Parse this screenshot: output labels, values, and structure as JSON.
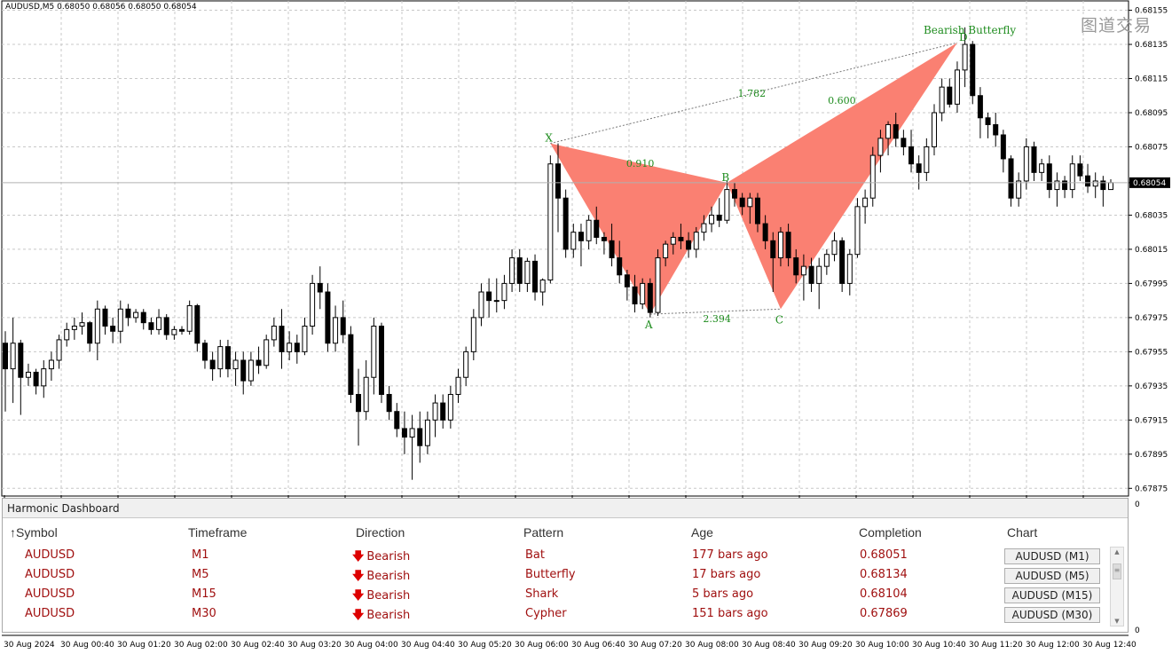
{
  "symbol_line": "AUDUSD,M5  0.68050 0.68056 0.68050 0.68054",
  "watermark": "图道交易",
  "price_axis": {
    "labels": [
      "0.68155",
      "0.68135",
      "0.68115",
      "0.68095",
      "0.68075",
      "0.68054",
      "0.68035",
      "0.68015",
      "0.67995",
      "0.67975",
      "0.67955",
      "0.67935",
      "0.67915",
      "0.67895",
      "0.67875"
    ],
    "current_price": "0.68054",
    "bottom_left_label": "0",
    "bottom_right_label": "0"
  },
  "time_axis": [
    "30 Aug 2024",
    "30 Aug 00:40",
    "30 Aug 01:20",
    "30 Aug 02:00",
    "30 Aug 02:40",
    "30 Aug 03:20",
    "30 Aug 04:00",
    "30 Aug 04:40",
    "30 Aug 05:20",
    "30 Aug 06:00",
    "30 Aug 06:40",
    "30 Aug 07:20",
    "30 Aug 08:00",
    "30 Aug 08:40",
    "30 Aug 09:20",
    "30 Aug 10:00",
    "30 Aug 10:40",
    "30 Aug 11:20",
    "30 Aug 12:00",
    "30 Aug 12:40"
  ],
  "pattern": {
    "name": "Bearish Butterfly",
    "points": [
      {
        "label": "X",
        "price": 0.68077
      },
      {
        "label": "A",
        "price": 0.67977
      },
      {
        "label": "B",
        "price": 0.68054
      },
      {
        "label": "C",
        "price": 0.6798
      },
      {
        "label": "D",
        "price": 0.68136
      }
    ],
    "ratios": {
      "xb": "0.910",
      "ac_label": "2.394",
      "xd": "1.782",
      "bd": "0.600"
    },
    "fill_color": "#fa8072",
    "label_color": "#1e8c1e"
  },
  "chart_data": {
    "type": "candlestick",
    "title": "AUDUSD,M5",
    "ylim": [
      0.67871,
      0.68161
    ],
    "current_price": 0.68054,
    "candles_ohlc": [
      [
        0.6796,
        0.67967,
        0.6792,
        0.67945
      ],
      [
        0.67945,
        0.67975,
        0.67925,
        0.6796
      ],
      [
        0.6796,
        0.67962,
        0.67918,
        0.6794
      ],
      [
        0.6794,
        0.67948,
        0.67935,
        0.67943
      ],
      [
        0.67943,
        0.67945,
        0.6793,
        0.67935
      ],
      [
        0.67935,
        0.6795,
        0.67928,
        0.67945
      ],
      [
        0.67945,
        0.67955,
        0.67938,
        0.6795
      ],
      [
        0.6795,
        0.67965,
        0.67945,
        0.67962
      ],
      [
        0.67962,
        0.67972,
        0.67958,
        0.67968
      ],
      [
        0.67968,
        0.67975,
        0.67962,
        0.6797
      ],
      [
        0.6797,
        0.67978,
        0.67965,
        0.67972
      ],
      [
        0.67972,
        0.67973,
        0.67955,
        0.6796
      ],
      [
        0.6796,
        0.67985,
        0.6795,
        0.6798
      ],
      [
        0.6798,
        0.67982,
        0.67965,
        0.6797
      ],
      [
        0.6797,
        0.67975,
        0.6796,
        0.67967
      ],
      [
        0.67967,
        0.67985,
        0.6796,
        0.6798
      ],
      [
        0.6798,
        0.67983,
        0.6797,
        0.67975
      ],
      [
        0.67975,
        0.6798,
        0.67972,
        0.67978
      ],
      [
        0.67978,
        0.6798,
        0.67968,
        0.67972
      ],
      [
        0.67972,
        0.67975,
        0.67965,
        0.67968
      ],
      [
        0.67968,
        0.6798,
        0.67965,
        0.67975
      ],
      [
        0.67975,
        0.67977,
        0.67962,
        0.67965
      ],
      [
        0.67965,
        0.6797,
        0.67962,
        0.67968
      ],
      [
        0.67968,
        0.6797,
        0.67965,
        0.67967
      ],
      [
        0.67967,
        0.67985,
        0.67965,
        0.67982
      ],
      [
        0.67982,
        0.67983,
        0.67955,
        0.6796
      ],
      [
        0.6796,
        0.67962,
        0.67945,
        0.6795
      ],
      [
        0.6795,
        0.67955,
        0.67938,
        0.67945
      ],
      [
        0.67945,
        0.67962,
        0.6794,
        0.67958
      ],
      [
        0.67958,
        0.67962,
        0.6794,
        0.67945
      ],
      [
        0.67945,
        0.67955,
        0.67935,
        0.6795
      ],
      [
        0.6795,
        0.67955,
        0.6793,
        0.67938
      ],
      [
        0.67938,
        0.67955,
        0.67935,
        0.6795
      ],
      [
        0.6795,
        0.67958,
        0.67942,
        0.67947
      ],
      [
        0.67947,
        0.67965,
        0.67945,
        0.67962
      ],
      [
        0.67962,
        0.67975,
        0.67958,
        0.6797
      ],
      [
        0.6797,
        0.6798,
        0.67945,
        0.67955
      ],
      [
        0.67955,
        0.67967,
        0.6795,
        0.6796
      ],
      [
        0.6796,
        0.67965,
        0.67948,
        0.67955
      ],
      [
        0.67955,
        0.67975,
        0.67953,
        0.6797
      ],
      [
        0.6797,
        0.68,
        0.67965,
        0.67995
      ],
      [
        0.67995,
        0.68005,
        0.6798,
        0.6799
      ],
      [
        0.6799,
        0.67995,
        0.67955,
        0.6796
      ],
      [
        0.6796,
        0.67982,
        0.67955,
        0.67975
      ],
      [
        0.67975,
        0.67985,
        0.6796,
        0.67965
      ],
      [
        0.67965,
        0.6797,
        0.67925,
        0.6793
      ],
      [
        0.6793,
        0.67945,
        0.679,
        0.6792
      ],
      [
        0.6792,
        0.6795,
        0.67915,
        0.6794
      ],
      [
        0.6794,
        0.67975,
        0.6793,
        0.6797
      ],
      [
        0.6797,
        0.67972,
        0.67925,
        0.6793
      ],
      [
        0.6793,
        0.67935,
        0.67915,
        0.6792
      ],
      [
        0.6792,
        0.67925,
        0.67905,
        0.6791
      ],
      [
        0.6791,
        0.6792,
        0.67895,
        0.67905
      ],
      [
        0.67905,
        0.67918,
        0.6788,
        0.6791
      ],
      [
        0.6791,
        0.6792,
        0.6789,
        0.679
      ],
      [
        0.679,
        0.6792,
        0.67895,
        0.67915
      ],
      [
        0.67915,
        0.6793,
        0.67905,
        0.67925
      ],
      [
        0.67925,
        0.6793,
        0.6791,
        0.67915
      ],
      [
        0.67915,
        0.67935,
        0.6791,
        0.6793
      ],
      [
        0.6793,
        0.67945,
        0.67925,
        0.6794
      ],
      [
        0.6794,
        0.67958,
        0.67935,
        0.67955
      ],
      [
        0.67955,
        0.6798,
        0.6795,
        0.67975
      ],
      [
        0.67975,
        0.67995,
        0.6797,
        0.6799
      ],
      [
        0.6799,
        0.67998,
        0.67975,
        0.67985
      ],
      [
        0.67985,
        0.67998,
        0.67978,
        0.67985
      ],
      [
        0.67985,
        0.68,
        0.6798,
        0.67995
      ],
      [
        0.67995,
        0.68015,
        0.6799,
        0.6801
      ],
      [
        0.6801,
        0.68015,
        0.6799,
        0.67995
      ],
      [
        0.67995,
        0.6801,
        0.6799,
        0.68008
      ],
      [
        0.68008,
        0.68012,
        0.67985,
        0.6799
      ],
      [
        0.6799,
        0.67998,
        0.67982,
        0.67997
      ],
      [
        0.67997,
        0.6807,
        0.67995,
        0.68065
      ],
      [
        0.68065,
        0.68077,
        0.68025,
        0.68045
      ],
      [
        0.68045,
        0.6805,
        0.6801,
        0.68015
      ],
      [
        0.68015,
        0.6803,
        0.6801,
        0.68025
      ],
      [
        0.68025,
        0.6803,
        0.68005,
        0.6802
      ],
      [
        0.6802,
        0.68035,
        0.68015,
        0.68032
      ],
      [
        0.68032,
        0.6804,
        0.68018,
        0.68022
      ],
      [
        0.68022,
        0.68025,
        0.68012,
        0.6802
      ],
      [
        0.6802,
        0.6803,
        0.68005,
        0.6801
      ],
      [
        0.6801,
        0.6802,
        0.67995,
        0.68
      ],
      [
        0.68,
        0.68003,
        0.67985,
        0.67993
      ],
      [
        0.67993,
        0.68,
        0.67978,
        0.67983
      ],
      [
        0.67983,
        0.67998,
        0.6798,
        0.67995
      ],
      [
        0.67995,
        0.67998,
        0.67975,
        0.67978
      ],
      [
        0.67978,
        0.68015,
        0.67976,
        0.6801
      ],
      [
        0.6801,
        0.6802,
        0.68005,
        0.68018
      ],
      [
        0.68018,
        0.68025,
        0.68012,
        0.68022
      ],
      [
        0.68022,
        0.6803,
        0.68015,
        0.6802
      ],
      [
        0.6802,
        0.68025,
        0.6801,
        0.68015
      ],
      [
        0.68015,
        0.68028,
        0.6801,
        0.68025
      ],
      [
        0.68025,
        0.68035,
        0.6802,
        0.6803
      ],
      [
        0.6803,
        0.6804,
        0.68025,
        0.68035
      ],
      [
        0.68035,
        0.68045,
        0.68028,
        0.68032
      ],
      [
        0.68032,
        0.68055,
        0.6803,
        0.6805
      ],
      [
        0.6805,
        0.68054,
        0.6804,
        0.68045
      ],
      [
        0.68045,
        0.68048,
        0.68035,
        0.6804
      ],
      [
        0.6804,
        0.68048,
        0.6803,
        0.68045
      ],
      [
        0.68045,
        0.68048,
        0.68025,
        0.6803
      ],
      [
        0.6803,
        0.68035,
        0.68015,
        0.6802
      ],
      [
        0.6802,
        0.68025,
        0.6799,
        0.6801
      ],
      [
        0.6801,
        0.68028,
        0.68005,
        0.68025
      ],
      [
        0.68025,
        0.6803,
        0.68005,
        0.6801
      ],
      [
        0.6801,
        0.68015,
        0.67995,
        0.68
      ],
      [
        0.68,
        0.68012,
        0.67985,
        0.68005
      ],
      [
        0.68005,
        0.6801,
        0.6799,
        0.67995
      ],
      [
        0.67995,
        0.6801,
        0.6798,
        0.68005
      ],
      [
        0.68005,
        0.68015,
        0.68,
        0.68012
      ],
      [
        0.68012,
        0.68025,
        0.68008,
        0.6802
      ],
      [
        0.6802,
        0.68022,
        0.6799,
        0.67995
      ],
      [
        0.67995,
        0.68015,
        0.67988,
        0.68012
      ],
      [
        0.68012,
        0.68045,
        0.6801,
        0.6804
      ],
      [
        0.6804,
        0.6805,
        0.6803,
        0.68045
      ],
      [
        0.68045,
        0.68075,
        0.6804,
        0.6807
      ],
      [
        0.6807,
        0.68085,
        0.6806,
        0.6808
      ],
      [
        0.6808,
        0.6809,
        0.6807,
        0.68088
      ],
      [
        0.68088,
        0.68095,
        0.68075,
        0.6808
      ],
      [
        0.6808,
        0.68085,
        0.6807,
        0.68075
      ],
      [
        0.68075,
        0.68085,
        0.6806,
        0.68065
      ],
      [
        0.68065,
        0.6807,
        0.6805,
        0.6806
      ],
      [
        0.6806,
        0.6808,
        0.68055,
        0.68075
      ],
      [
        0.68075,
        0.681,
        0.6807,
        0.68095
      ],
      [
        0.68095,
        0.68115,
        0.6809,
        0.6811
      ],
      [
        0.6811,
        0.68115,
        0.68098,
        0.681
      ],
      [
        0.681,
        0.68125,
        0.68095,
        0.6812
      ],
      [
        0.6812,
        0.68145,
        0.6811,
        0.68135
      ],
      [
        0.68135,
        0.68137,
        0.681,
        0.68105
      ],
      [
        0.68105,
        0.6811,
        0.6808,
        0.68092
      ],
      [
        0.68092,
        0.68095,
        0.6808,
        0.68088
      ],
      [
        0.68088,
        0.68095,
        0.68075,
        0.68082
      ],
      [
        0.68082,
        0.68085,
        0.6806,
        0.68068
      ],
      [
        0.68068,
        0.6807,
        0.6804,
        0.68045
      ],
      [
        0.68045,
        0.6806,
        0.6804,
        0.68055
      ],
      [
        0.68055,
        0.6808,
        0.6805,
        0.68075
      ],
      [
        0.68075,
        0.68078,
        0.68055,
        0.6806
      ],
      [
        0.6806,
        0.68068,
        0.68055,
        0.68065
      ],
      [
        0.68065,
        0.6807,
        0.68045,
        0.6805
      ],
      [
        0.6805,
        0.6806,
        0.6804,
        0.68055
      ],
      [
        0.68055,
        0.68058,
        0.68045,
        0.6805
      ],
      [
        0.6805,
        0.6807,
        0.68045,
        0.68065
      ],
      [
        0.68065,
        0.6807,
        0.68055,
        0.68058
      ],
      [
        0.68058,
        0.68065,
        0.68048,
        0.68052
      ],
      [
        0.68052,
        0.6806,
        0.68045,
        0.68055
      ],
      [
        0.68055,
        0.68058,
        0.6804,
        0.6805
      ],
      [
        0.6805,
        0.68056,
        0.6805,
        0.68054
      ]
    ]
  },
  "dashboard": {
    "title": "Harmonic Dashboard",
    "headers": {
      "symbol": "Symbol",
      "sort_arrow": "↑",
      "timeframe": "Timeframe",
      "direction": "Direction",
      "pattern": "Pattern",
      "age": "Age",
      "completion": "Completion",
      "chart": "Chart"
    },
    "rows": [
      {
        "symbol": "AUDUSD",
        "timeframe": "M1",
        "direction": "Bearish",
        "pattern": "Bat",
        "age": "177 bars ago",
        "completion": "0.68051",
        "chart": "AUDUSD (M1)"
      },
      {
        "symbol": "AUDUSD",
        "timeframe": "M5",
        "direction": "Bearish",
        "pattern": "Butterfly",
        "age": "17 bars ago",
        "completion": "0.68134",
        "chart": "AUDUSD (M5)"
      },
      {
        "symbol": "AUDUSD",
        "timeframe": "M15",
        "direction": "Bearish",
        "pattern": "Shark",
        "age": "5 bars ago",
        "completion": "0.68104",
        "chart": "AUDUSD (M15)"
      },
      {
        "symbol": "AUDUSD",
        "timeframe": "M30",
        "direction": "Bearish",
        "pattern": "Cypher",
        "age": "151 bars ago",
        "completion": "0.67869",
        "chart": "AUDUSD (M30)"
      }
    ],
    "direction_arrow": "🡇",
    "text_color": "#a01010"
  }
}
